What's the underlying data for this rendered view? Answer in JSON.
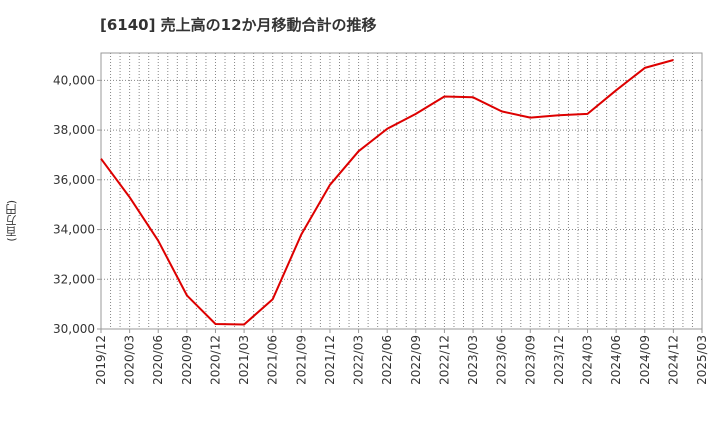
{
  "chart_data": {
    "type": "line",
    "title": "[6140]  売上高の12か月移動合計の推移",
    "ylabel": "(百万円)",
    "xlabel": "",
    "ylim": [
      30000,
      41100
    ],
    "yticks": [
      30000,
      32000,
      34000,
      36000,
      38000,
      40000
    ],
    "ytick_labels": [
      "30,000",
      "32,000",
      "34,000",
      "36,000",
      "38,000",
      "40,000"
    ],
    "x_ticks": [
      "2019/12",
      "2020/03",
      "2020/06",
      "2020/09",
      "2020/12",
      "2021/03",
      "2021/06",
      "2021/09",
      "2021/12",
      "2022/03",
      "2022/06",
      "2022/09",
      "2022/12",
      "2023/03",
      "2023/06",
      "2023/09",
      "2023/12",
      "2024/03",
      "2024/06",
      "2024/09",
      "2024/12",
      "2025/03"
    ],
    "grid": true,
    "line_color": "#dd0000",
    "series": [
      {
        "name": "売上高の12か月移動合計",
        "x": [
          "2019/12",
          "2020/03",
          "2020/06",
          "2020/09",
          "2020/12",
          "2021/03",
          "2021/06",
          "2021/09",
          "2021/12",
          "2022/03",
          "2022/06",
          "2022/09",
          "2022/12",
          "2023/03",
          "2023/06",
          "2023/09",
          "2023/12",
          "2024/03",
          "2024/06",
          "2024/09",
          "2024/12"
        ],
        "values": [
          36850,
          35300,
          33550,
          31350,
          30200,
          30180,
          31200,
          33800,
          35800,
          37150,
          38050,
          38650,
          39350,
          39320,
          38750,
          38500,
          38600,
          38650,
          39600,
          40500,
          40820
        ]
      }
    ]
  }
}
